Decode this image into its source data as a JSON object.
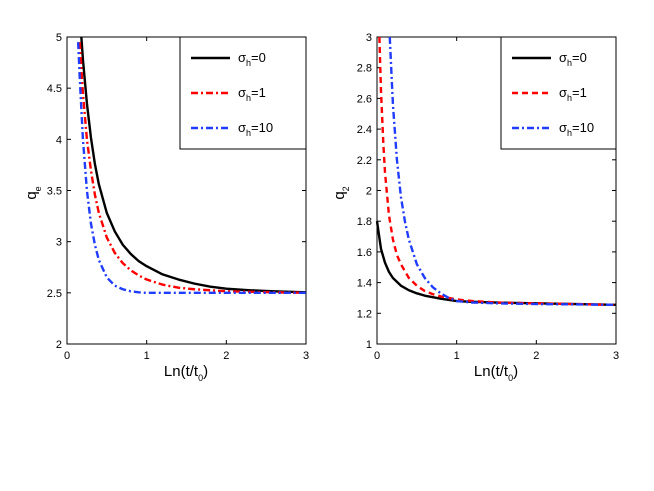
{
  "chart_data": [
    {
      "type": "line",
      "xlabel": "Ln(t/t",
      "xlabel_sub": "0",
      "xlabel_suffix": ")",
      "ylabel": "q",
      "ylabel_sub": "e",
      "xlim": [
        0,
        3
      ],
      "ylim": [
        2,
        5
      ],
      "xticks": [
        0,
        1,
        2,
        3
      ],
      "xtick_labels": [
        "0",
        "1",
        "2",
        "3"
      ],
      "yticks": [
        2,
        2.5,
        3,
        3.5,
        4,
        4.5,
        5
      ],
      "ytick_labels": [
        "2",
        "2.5",
        "3",
        "3.5",
        "4",
        "4.5",
        "5"
      ],
      "legend_position": "top-right",
      "series": [
        {
          "name": "σh=0",
          "legend_sigma": "σ",
          "legend_sub": "h",
          "legend_rest": "=0",
          "color": "#000000",
          "style": "solid",
          "x": [
            0.18,
            0.2,
            0.25,
            0.3,
            0.35,
            0.4,
            0.5,
            0.6,
            0.7,
            0.8,
            0.9,
            1.0,
            1.2,
            1.4,
            1.6,
            1.8,
            2.0,
            2.3,
            2.6,
            3.0
          ],
          "y": [
            5.0,
            4.78,
            4.35,
            4.02,
            3.76,
            3.56,
            3.28,
            3.1,
            2.97,
            2.88,
            2.81,
            2.76,
            2.68,
            2.63,
            2.59,
            2.56,
            2.54,
            2.525,
            2.515,
            2.505
          ]
        },
        {
          "name": "σh=1",
          "legend_sigma": "σ",
          "legend_sub": "h",
          "legend_rest": "=1",
          "color": "#ff0000",
          "style": "dashdot",
          "x": [
            0.16,
            0.18,
            0.2,
            0.25,
            0.3,
            0.35,
            0.4,
            0.5,
            0.6,
            0.7,
            0.8,
            0.9,
            1.0,
            1.2,
            1.4,
            1.6,
            1.8,
            2.0,
            2.3,
            2.6,
            3.0
          ],
          "y": [
            4.95,
            4.7,
            4.45,
            4.0,
            3.7,
            3.46,
            3.28,
            3.04,
            2.89,
            2.79,
            2.72,
            2.67,
            2.63,
            2.58,
            2.55,
            2.535,
            2.525,
            2.515,
            2.51,
            2.505,
            2.5
          ]
        },
        {
          "name": "σh=10",
          "legend_sigma": "σ",
          "legend_sub": "h",
          "legend_rest": "=10",
          "color": "#1f3cff",
          "style": "dashdot",
          "x": [
            0.14,
            0.16,
            0.18,
            0.2,
            0.25,
            0.3,
            0.35,
            0.4,
            0.5,
            0.6,
            0.7,
            0.8,
            0.9,
            1.0,
            1.2,
            1.5,
            2.0,
            2.5,
            3.0
          ],
          "y": [
            4.95,
            4.6,
            4.3,
            4.0,
            3.5,
            3.18,
            2.97,
            2.82,
            2.65,
            2.57,
            2.535,
            2.515,
            2.505,
            2.5,
            2.5,
            2.5,
            2.5,
            2.5,
            2.5
          ]
        }
      ]
    },
    {
      "type": "line",
      "xlabel": "Ln(t/t",
      "xlabel_sub": "0",
      "xlabel_suffix": ")",
      "ylabel": "q",
      "ylabel_sub": "2",
      "xlim": [
        0,
        3
      ],
      "ylim": [
        1,
        3
      ],
      "xticks": [
        0,
        1,
        2,
        3
      ],
      "xtick_labels": [
        "0",
        "1",
        "2",
        "3"
      ],
      "yticks": [
        1,
        1.2,
        1.4,
        1.6,
        1.8,
        2,
        2.2,
        2.4,
        2.6,
        2.8,
        3
      ],
      "ytick_labels": [
        "1",
        "1.2",
        "1.4",
        "1.6",
        "1.8",
        "2",
        "2.2",
        "2.4",
        "2.6",
        "2.8",
        "3"
      ],
      "legend_position": "top-right",
      "series": [
        {
          "name": "σh=0",
          "legend_sigma": "σ",
          "legend_sub": "h",
          "legend_rest": "=0",
          "color": "#000000",
          "style": "solid",
          "x": [
            0.0,
            0.05,
            0.1,
            0.15,
            0.2,
            0.3,
            0.4,
            0.5,
            0.6,
            0.8,
            1.0,
            1.2,
            1.5,
            2.0,
            2.5,
            3.0
          ],
          "y": [
            1.8,
            1.62,
            1.53,
            1.47,
            1.43,
            1.38,
            1.35,
            1.33,
            1.315,
            1.295,
            1.28,
            1.275,
            1.27,
            1.265,
            1.26,
            1.255
          ]
        },
        {
          "name": "σh=1",
          "legend_sigma": "σ",
          "legend_sub": "h",
          "legend_rest": "=1",
          "color": "#ff0000",
          "style": "dashed",
          "x": [
            0.03,
            0.05,
            0.08,
            0.1,
            0.15,
            0.2,
            0.25,
            0.3,
            0.4,
            0.5,
            0.6,
            0.7,
            0.8,
            1.0,
            1.2,
            1.5,
            2.0,
            2.5,
            3.0
          ],
          "y": [
            3.0,
            2.65,
            2.3,
            2.12,
            1.84,
            1.68,
            1.58,
            1.52,
            1.43,
            1.38,
            1.345,
            1.325,
            1.31,
            1.29,
            1.28,
            1.27,
            1.265,
            1.26,
            1.255
          ]
        },
        {
          "name": "σh=10",
          "legend_sigma": "σ",
          "legend_sub": "h",
          "legend_rest": "=10",
          "color": "#1f3cff",
          "style": "dashdot",
          "x": [
            0.16,
            0.18,
            0.2,
            0.25,
            0.3,
            0.35,
            0.4,
            0.5,
            0.6,
            0.7,
            0.8,
            0.9,
            1.0,
            1.2,
            1.5,
            2.0,
            2.5,
            3.0
          ],
          "y": [
            3.0,
            2.78,
            2.56,
            2.2,
            1.96,
            1.8,
            1.68,
            1.52,
            1.43,
            1.37,
            1.33,
            1.3,
            1.28,
            1.27,
            1.265,
            1.26,
            1.258,
            1.255
          ]
        }
      ]
    }
  ]
}
